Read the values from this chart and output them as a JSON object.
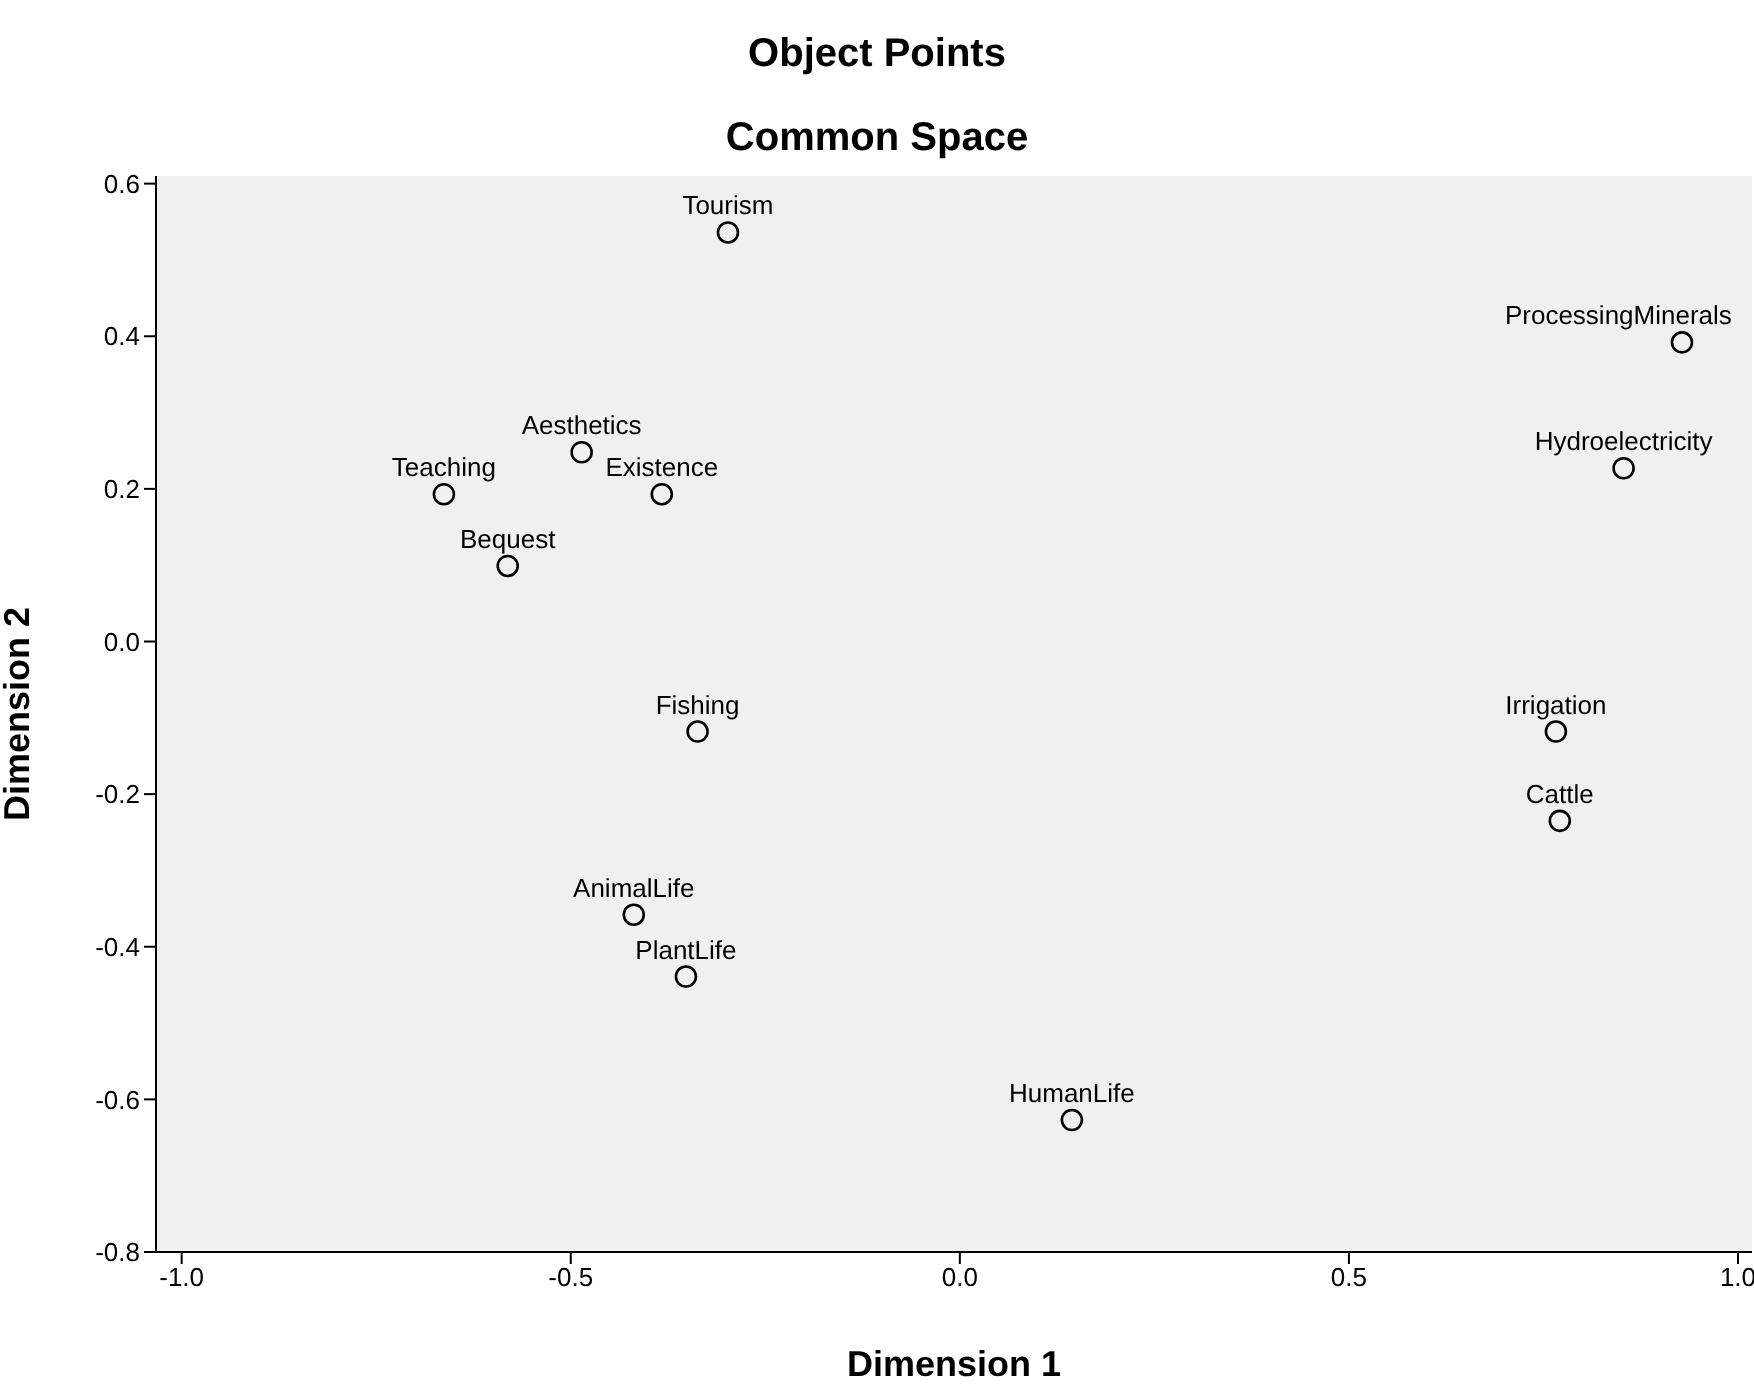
{
  "chart_data": {
    "type": "scatter",
    "title": "Object Points",
    "subtitle": "Common Space",
    "xlabel": "Dimension 1",
    "ylabel": "Dimension 2",
    "x": [
      -0.298,
      0.928,
      0.853,
      -0.486,
      -0.663,
      -0.383,
      -0.581,
      -0.337,
      0.766,
      0.771,
      -0.419,
      -0.352,
      0.144
    ],
    "series": [
      {
        "color": "#000000",
        "values": [
          0.536,
          0.392,
          0.227,
          0.248,
          0.193,
          0.193,
          0.099,
          -0.118,
          -0.118,
          -0.235,
          -0.358,
          -0.439,
          -0.627
        ]
      }
    ],
    "annotations": [
      {
        "text": "Tourism",
        "x": -0.298,
        "y": 0.536
      },
      {
        "text": "ProcessingMinerals",
        "x": 0.928,
        "y": 0.392
      },
      {
        "text": "Hydroelectricity",
        "x": 0.853,
        "y": 0.227
      },
      {
        "text": "Aesthetics",
        "x": -0.486,
        "y": 0.248
      },
      {
        "text": "Teaching",
        "x": -0.663,
        "y": 0.193
      },
      {
        "text": "Existence",
        "x": -0.383,
        "y": 0.193
      },
      {
        "text": "Bequest",
        "x": -0.581,
        "y": 0.099
      },
      {
        "text": "Fishing",
        "x": -0.337,
        "y": -0.118
      },
      {
        "text": "Irrigation",
        "x": 0.766,
        "y": -0.118
      },
      {
        "text": "Cattle",
        "x": 0.771,
        "y": -0.235
      },
      {
        "text": "AnimalLife",
        "x": -0.419,
        "y": -0.358
      },
      {
        "text": "PlantLife",
        "x": -0.352,
        "y": -0.439
      },
      {
        "text": "HumanLife",
        "x": 0.144,
        "y": -0.627
      }
    ],
    "xlim": [
      -1.033,
      1.018
    ],
    "xticks": [
      {
        "value": -1,
        "label": "-1.0"
      },
      {
        "value": -0.5,
        "label": "-0.5"
      },
      {
        "value": 0,
        "label": "0.0"
      },
      {
        "value": 0.5,
        "label": "0.5"
      },
      {
        "value": 1,
        "label": "1.0"
      }
    ],
    "ylim": [
      -0.8,
      0.61
    ],
    "yticks": [
      {
        "value": -0.8,
        "label": "-0.8"
      },
      {
        "value": -0.6,
        "label": "-0.6"
      },
      {
        "value": -0.4,
        "label": "-0.4"
      },
      {
        "value": -0.2,
        "label": "-0.2"
      },
      {
        "value": 0,
        "label": "0.0"
      },
      {
        "value": 0.2,
        "label": "0.2"
      },
      {
        "value": 0.4,
        "label": "0.4"
      },
      {
        "value": 0.6,
        "label": "0.6"
      }
    ],
    "grid": false,
    "marker": "circle"
  }
}
